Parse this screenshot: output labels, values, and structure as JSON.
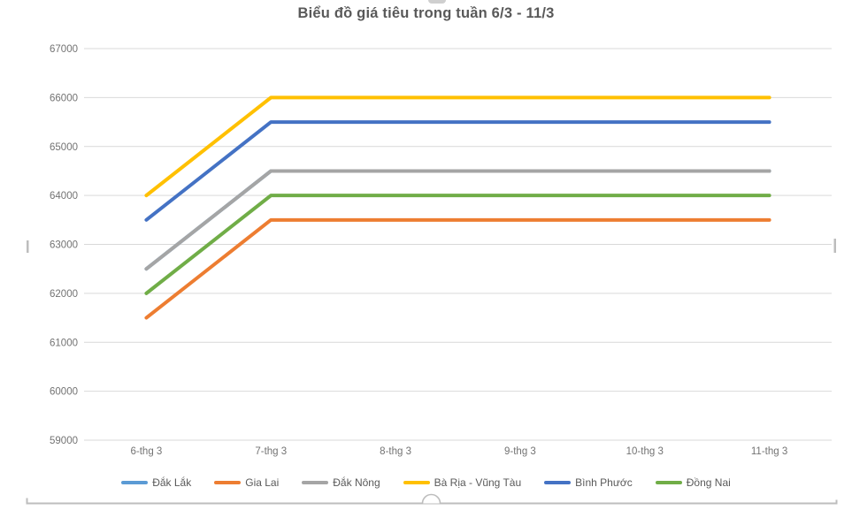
{
  "chart_data": {
    "type": "line",
    "title": "Biểu đồ giá tiêu trong tuần 6/3 - 11/3",
    "categories": [
      "6-thg 3",
      "7-thg 3",
      "8-thg 3",
      "9-thg 3",
      "10-thg 3",
      "11-thg 3"
    ],
    "series": [
      {
        "name": "Đắk Lắk",
        "color": "#5B9BD5",
        "values": [
          62500,
          64500,
          64500,
          64500,
          64500,
          64500
        ]
      },
      {
        "name": "Gia Lai",
        "color": "#ED7D31",
        "values": [
          61500,
          63500,
          63500,
          63500,
          63500,
          63500
        ]
      },
      {
        "name": "Đắk Nông",
        "color": "#A5A5A5",
        "values": [
          62500,
          64500,
          64500,
          64500,
          64500,
          64500
        ]
      },
      {
        "name": "Bà Rịa - Vũng Tàu",
        "color": "#FFC000",
        "values": [
          64000,
          66000,
          66000,
          66000,
          66000,
          66000
        ]
      },
      {
        "name": "Bình Phước",
        "color": "#4472C4",
        "values": [
          63500,
          65500,
          65500,
          65500,
          65500,
          65500
        ]
      },
      {
        "name": "Đồng Nai",
        "color": "#70AD47",
        "values": [
          62000,
          64000,
          64000,
          64000,
          64000,
          64000
        ]
      }
    ],
    "ylim": [
      59000,
      67000
    ],
    "ytick_step": 1000,
    "grid": true,
    "legend_position": "bottom"
  },
  "style": {
    "grid_color": "#D9D9D9",
    "axis_text_color": "#737373",
    "title_color": "#595959",
    "legend_text_color": "#595959",
    "handle_color": "#BDBDBD"
  }
}
